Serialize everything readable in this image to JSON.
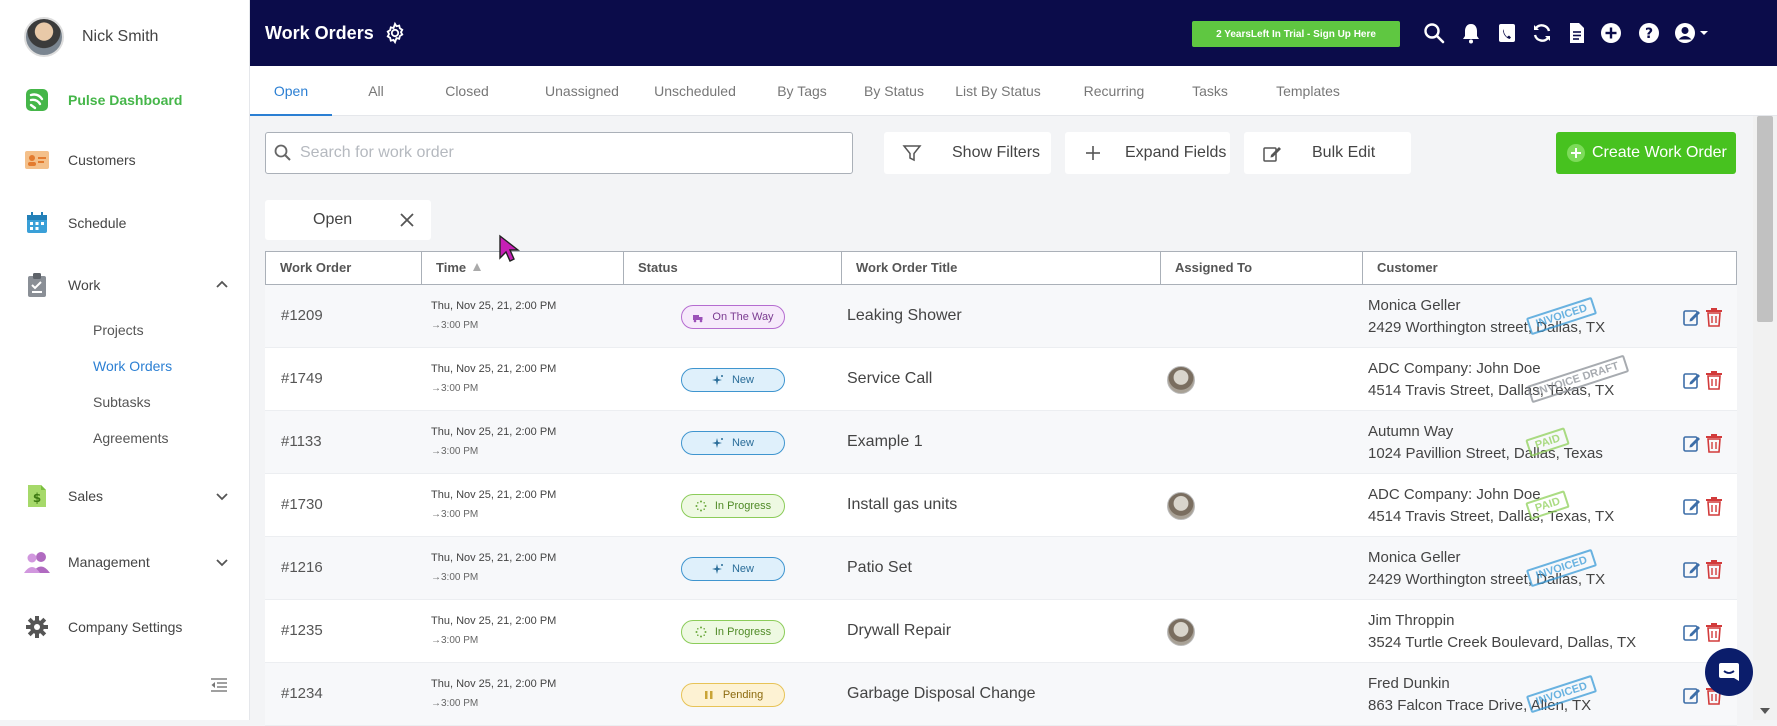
{
  "user": {
    "name": "Nick Smith"
  },
  "sidebar": {
    "items": [
      {
        "label": "Pulse Dashboard",
        "icon": "pulse-logo-icon"
      },
      {
        "label": "Customers",
        "icon": "customer-card-icon"
      },
      {
        "label": "Schedule",
        "icon": "calendar-icon"
      },
      {
        "label": "Work",
        "icon": "clipboard-icon"
      },
      {
        "label": "Sales",
        "icon": "dollar-document-icon"
      },
      {
        "label": "Management",
        "icon": "users-icon"
      },
      {
        "label": "Company Settings",
        "icon": "gear-icon"
      }
    ],
    "work_subitems": [
      "Projects",
      "Work Orders",
      "Subtasks",
      "Agreements"
    ]
  },
  "header": {
    "title": "Work Orders",
    "trial_label": "2 YearsLeft In Trial - Sign Up Here"
  },
  "tabs": [
    "Open",
    "All",
    "Closed",
    "Unassigned",
    "Unscheduled",
    "By Tags",
    "By Status",
    "List By Status",
    "Recurring",
    "Tasks",
    "Templates"
  ],
  "toolbar": {
    "search_placeholder": "Search for work order",
    "show_filters": "Show Filters",
    "expand_fields": "Expand Fields",
    "bulk_edit": "Bulk Edit",
    "create": "Create Work Order"
  },
  "filter_chip": "Open",
  "table": {
    "headers": [
      "Work Order",
      "Time",
      "Status",
      "Work Order Title",
      "Assigned To",
      "Customer"
    ],
    "rows": [
      {
        "num": "#1209",
        "time1": "Thu, Nov 25, 21, 2:00 PM",
        "time2": "→3:00 PM",
        "status": "On The Way",
        "title": "Leaking Shower",
        "assigned": false,
        "cust1": "Monica Geller",
        "cust2": "2429 Worthington street, Dallas, TX",
        "stamp": "INVOICED"
      },
      {
        "num": "#1749",
        "time1": "Thu, Nov 25, 21, 2:00 PM",
        "time2": "→3:00 PM",
        "status": "New",
        "title": "Service Call",
        "assigned": true,
        "cust1": "ADC Company: John Doe",
        "cust2": "4514 Travis Street, Dallas, Texas, TX",
        "stamp": "INVOICE DRAFT"
      },
      {
        "num": "#1133",
        "time1": "Thu, Nov 25, 21, 2:00 PM",
        "time2": "→3:00 PM",
        "status": "New",
        "title": "Example 1",
        "assigned": false,
        "cust1": "Autumn Way",
        "cust2": "1024 Pavillion Street, Dallas, Texas",
        "stamp": "PAID"
      },
      {
        "num": "#1730",
        "time1": "Thu, Nov 25, 21, 2:00 PM",
        "time2": "→3:00 PM",
        "status": "In Progress",
        "title": "Install gas units",
        "assigned": true,
        "cust1": "ADC Company: John Doe",
        "cust2": "4514 Travis Street, Dallas, Texas, TX",
        "stamp": "PAID"
      },
      {
        "num": "#1216",
        "time1": "Thu, Nov 25, 21, 2:00 PM",
        "time2": "→3:00 PM",
        "status": "New",
        "title": "Patio Set",
        "assigned": false,
        "cust1": "Monica Geller",
        "cust2": "2429 Worthington street, Dallas, TX",
        "stamp": "INVOICED"
      },
      {
        "num": "#1235",
        "time1": "Thu, Nov 25, 21, 2:00 PM",
        "time2": "→3:00 PM",
        "status": "In Progress",
        "title": "Drywall Repair",
        "assigned": true,
        "cust1": "Jim Throppin",
        "cust2": "3524 Turtle Creek Boulevard, Dallas, TX",
        "stamp": ""
      },
      {
        "num": "#1234",
        "time1": "Thu, Nov 25, 21, 2:00 PM",
        "time2": "→3:00 PM",
        "status": "Pending",
        "title": "Garbage Disposal Change",
        "assigned": false,
        "cust1": "Fred Dunkin",
        "cust2": "863 Falcon Trace Drive, Allen, TX",
        "stamp": "INVOICED"
      }
    ]
  },
  "colors": {
    "header_bg": "#0b0c4a",
    "accent_green": "#47c21f",
    "link_blue": "#2b7fd3"
  }
}
